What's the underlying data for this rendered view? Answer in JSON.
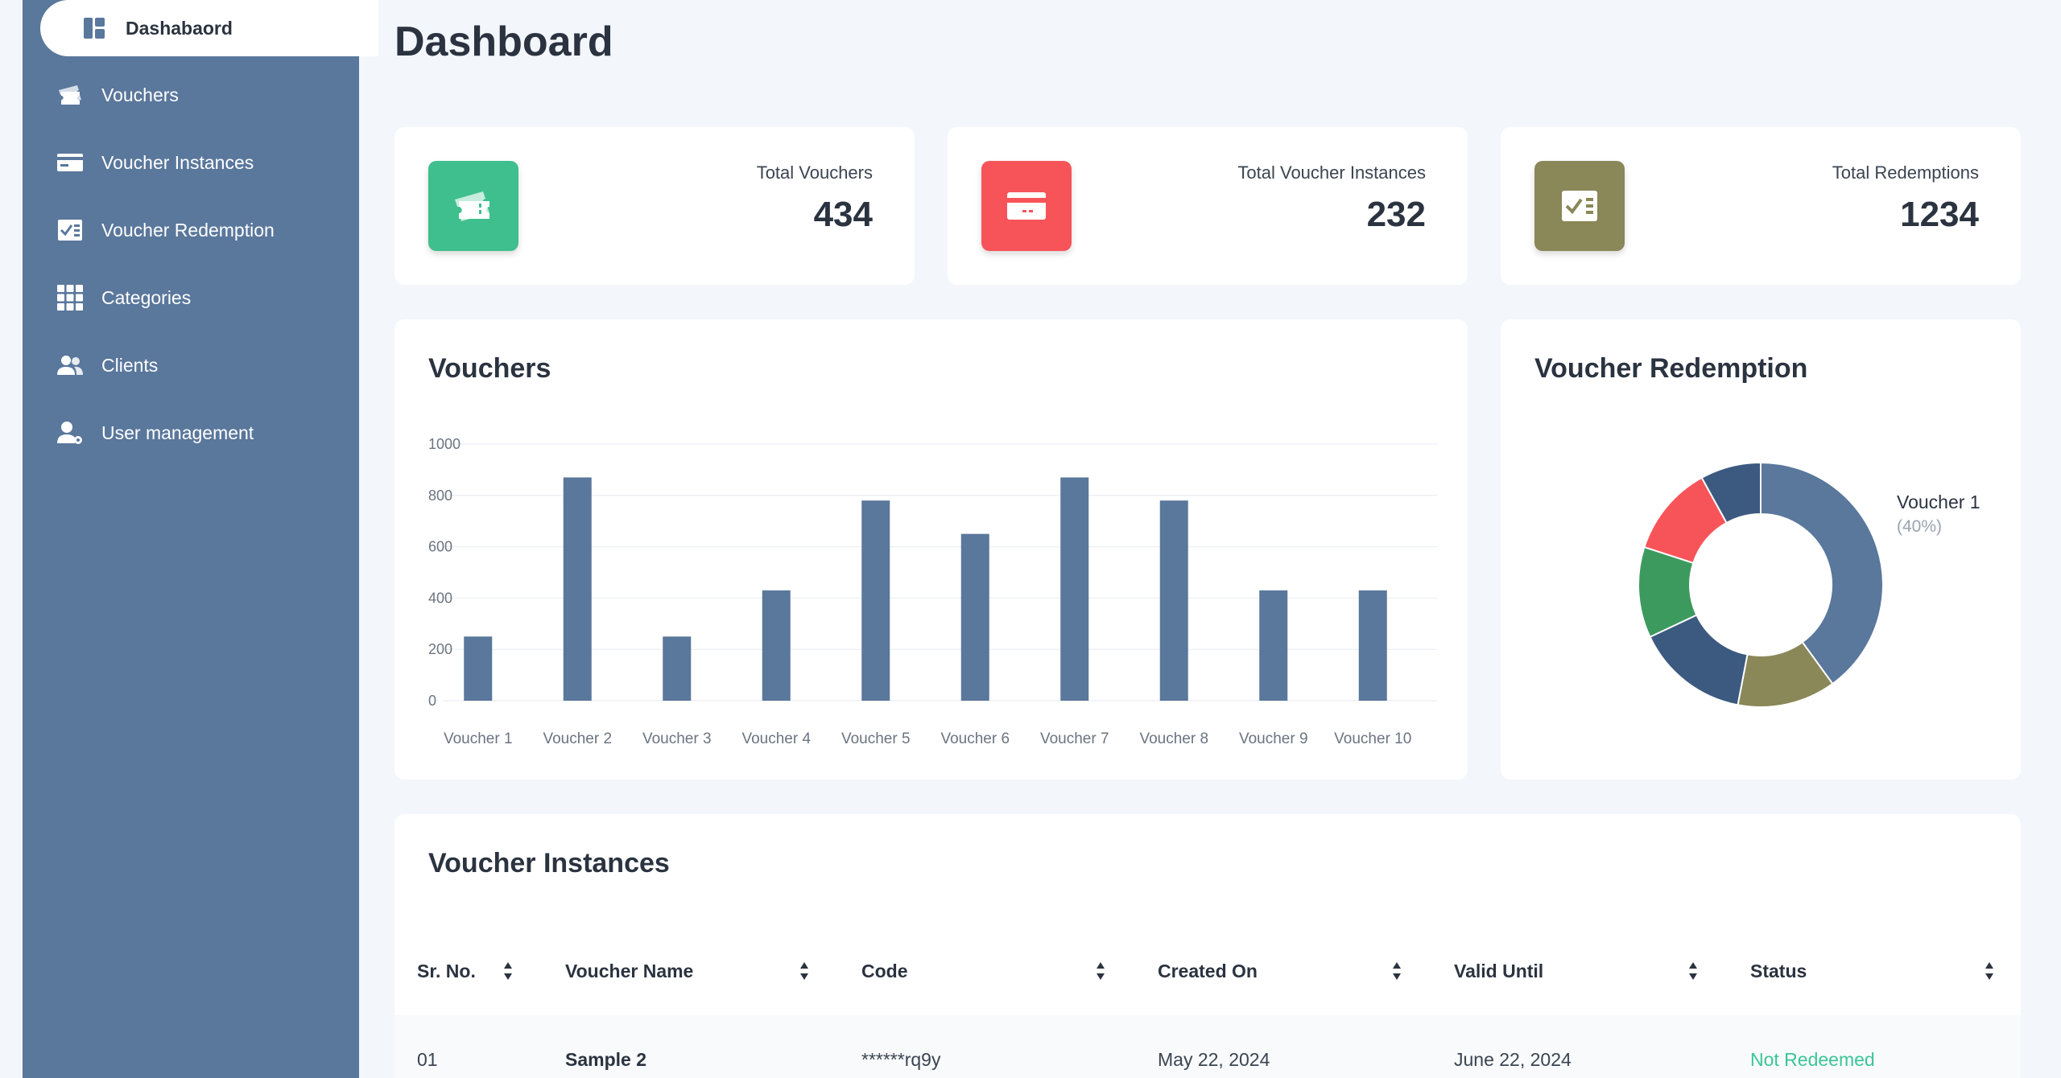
{
  "sidebar": {
    "items": [
      {
        "label": "Dashabaord",
        "icon": "dashboard-icon",
        "active": true
      },
      {
        "label": "Vouchers",
        "icon": "ticket-icon"
      },
      {
        "label": "Voucher Instances",
        "icon": "card-icon"
      },
      {
        "label": "Voucher Redemption",
        "icon": "checklist-icon"
      },
      {
        "label": "Categories",
        "icon": "grid-icon"
      },
      {
        "label": "Clients",
        "icon": "people-icon"
      },
      {
        "label": "User management",
        "icon": "user-gear-icon"
      }
    ]
  },
  "page_title": "Dashboard",
  "stats": [
    {
      "label": "Total Vouchers",
      "value": "434",
      "icon": "ticket-icon",
      "color": "#3fbf8d"
    },
    {
      "label": "Total Voucher Instances",
      "value": "232",
      "icon": "card-icon",
      "color": "#f75459"
    },
    {
      "label": "Total Redemptions",
      "value": "1234",
      "icon": "checklist-icon",
      "color": "#8a8758"
    }
  ],
  "vouchers_card": {
    "title": "Vouchers"
  },
  "redemption_card": {
    "title": "Voucher Redemption",
    "legend_name": "Voucher 1",
    "legend_pct": "(40%)"
  },
  "chart_data": [
    {
      "type": "bar",
      "title": "Vouchers",
      "categories": [
        "Voucher 1",
        "Voucher 2",
        "Voucher 3",
        "Voucher 4",
        "Voucher 5",
        "Voucher 6",
        "Voucher 7",
        "Voucher 8",
        "Voucher 9",
        "Voucher 10"
      ],
      "values": [
        250,
        870,
        250,
        430,
        780,
        650,
        870,
        780,
        430,
        430
      ],
      "ylim": [
        0,
        1000
      ],
      "yticks": [
        "0",
        "200",
        "400",
        "600",
        "800",
        "1000"
      ],
      "grid": true,
      "color": "#5a779c"
    },
    {
      "type": "pie",
      "title": "Voucher Redemption",
      "donut": true,
      "slices": [
        {
          "label": "Voucher 1",
          "value": 40,
          "color": "#5a779c"
        },
        {
          "value": 13,
          "color": "#8a8758"
        },
        {
          "value": 15,
          "color": "#3c5a80"
        },
        {
          "value": 12,
          "color": "#3d9a5f"
        },
        {
          "value": 12,
          "color": "#f75459"
        },
        {
          "value": 8,
          "color": "#3c5a80"
        }
      ]
    }
  ],
  "table": {
    "title": "Voucher Instances",
    "columns": [
      "Sr. No.",
      "Voucher Name",
      "Code",
      "Created On",
      "Valid Until",
      "Status"
    ],
    "rows": [
      {
        "sr": "01",
        "name": "Sample 2",
        "code": "******rq9y",
        "created": "May 22, 2024",
        "valid": "June 22, 2024",
        "status": "Not Redeemed"
      }
    ]
  }
}
